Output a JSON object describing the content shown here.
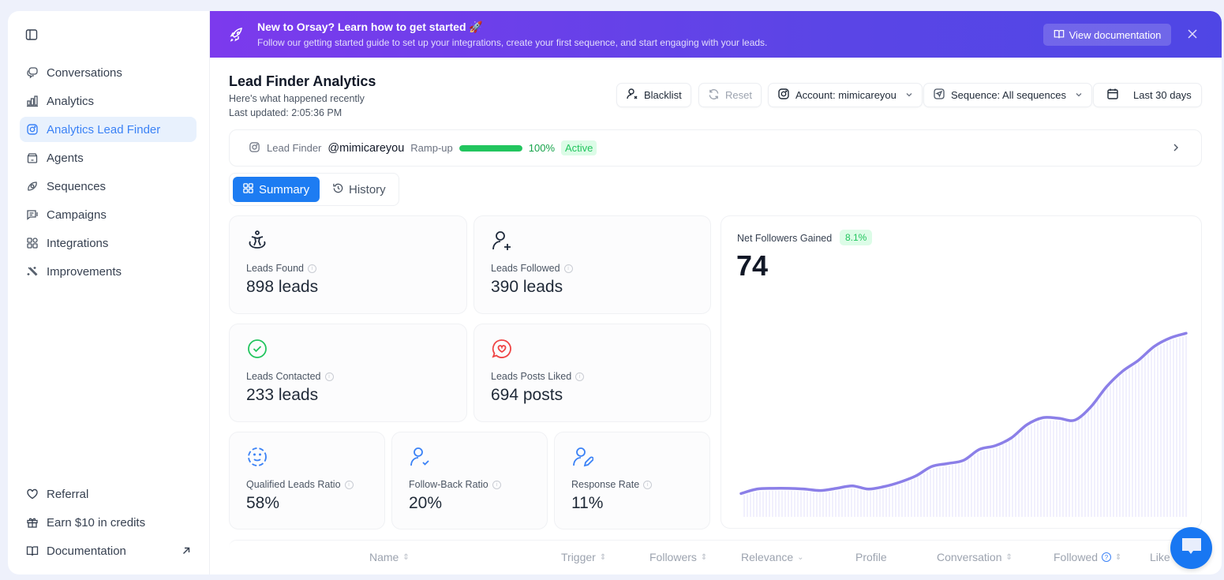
{
  "sidebar": {
    "toggle_icon": "sidebar-panel-icon",
    "items": [
      {
        "label": "Conversations",
        "icon": "chat-bubbles-icon"
      },
      {
        "label": "Analytics",
        "icon": "bar-chart-icon"
      },
      {
        "label": "Analytics Lead Finder",
        "icon": "instagram-icon",
        "active": true
      },
      {
        "label": "Agents",
        "icon": "agent-jar-icon"
      },
      {
        "label": "Sequences",
        "icon": "sequence-icon"
      },
      {
        "label": "Campaigns",
        "icon": "message-square-icon"
      },
      {
        "label": "Integrations",
        "icon": "grid-icon"
      },
      {
        "label": "Improvements",
        "icon": "magic-wand-icon"
      }
    ],
    "bottom_items": [
      {
        "label": "Referral",
        "icon": "heart-icon"
      },
      {
        "label": "Earn $10 in credits",
        "icon": "gift-icon"
      },
      {
        "label": "Documentation",
        "icon": "book-icon",
        "external": true
      }
    ]
  },
  "banner": {
    "title": "New to Orsay? Learn how to get started 🚀",
    "subtitle": "Follow our getting started guide to set up your integrations, create your first sequence, and start engaging with your leads.",
    "doc_button": "View documentation",
    "gradient_start": "#7c3aed",
    "gradient_end": "#4f46e5"
  },
  "header": {
    "title": "Lead Finder Analytics",
    "subtitle": "Here's what happened recently",
    "last_updated": "Last updated: 2:05:36 PM"
  },
  "toolbar": {
    "blacklist": "Blacklist",
    "reset": "Reset",
    "account": "Account: mimicareyou",
    "sequence": "Sequence: All sequences",
    "date_range": "Last 30 days"
  },
  "lead_finder": {
    "label": "Lead Finder",
    "handle": "@mimicareyou",
    "ramp_label": "Ramp-up",
    "ramp_progress": 100,
    "ramp_text": "100%",
    "status": "Active",
    "accent": "#22c55e"
  },
  "tabs": [
    {
      "label": "Summary",
      "active": true
    },
    {
      "label": "History",
      "active": false
    }
  ],
  "stats": [
    {
      "label": "Leads Found",
      "value": "898 leads",
      "icon": "accessibility-icon"
    },
    {
      "label": "Leads Followed",
      "value": "390 leads",
      "icon": "user-plus-icon"
    },
    {
      "label": "Leads Contacted",
      "value": "233 leads",
      "icon": "check-circle-icon"
    },
    {
      "label": "Leads Posts Liked",
      "value": "694 posts",
      "icon": "heart-message-icon"
    },
    {
      "label": "Qualified Leads Ratio",
      "value": "58%",
      "icon": "smile-dashed-icon"
    },
    {
      "label": "Follow-Back Ratio",
      "value": "20%",
      "icon": "user-check-icon"
    },
    {
      "label": "Response Rate",
      "value": "11%",
      "icon": "user-pen-icon"
    }
  ],
  "chart_data": {
    "type": "line",
    "title": "Net Followers Gained",
    "badge": "8.1%",
    "total": "74",
    "line_color": "#8b7fe8",
    "xlabel": "",
    "ylabel": "",
    "ylim": [
      0,
      90
    ],
    "x": [
      1,
      2,
      3,
      4,
      5,
      6,
      7,
      8,
      9,
      10,
      11,
      12,
      13,
      14,
      15,
      16,
      17,
      18,
      19,
      20,
      21,
      22,
      23,
      24,
      25,
      26,
      27,
      28,
      29
    ],
    "values": [
      9.4,
      11.2,
      11.5,
      11.5,
      11.2,
      10.6,
      11.5,
      12.5,
      11.2,
      12.2,
      14.0,
      16.5,
      20.3,
      21.5,
      22.8,
      27.2,
      28.7,
      31.8,
      37.2,
      40.0,
      39.7,
      39.0,
      44.3,
      52.5,
      58.7,
      63.1,
      68.7,
      72.1,
      74.0
    ],
    "grid": false
  },
  "table": {
    "columns": [
      {
        "label": "Name",
        "sort": "both"
      },
      {
        "label": "Trigger",
        "sort": "both"
      },
      {
        "label": "Followers",
        "sort": "both"
      },
      {
        "label": "Relevance",
        "sort": "desc"
      },
      {
        "label": "Profile",
        "sort": "none"
      },
      {
        "label": "Conversation",
        "sort": "both"
      },
      {
        "label": "Followed",
        "sort": "both",
        "help": true
      },
      {
        "label": "Like",
        "sort": "none"
      }
    ]
  },
  "chat_widget": {
    "icon": "chat-widget-icon",
    "color": "#1877f2"
  }
}
